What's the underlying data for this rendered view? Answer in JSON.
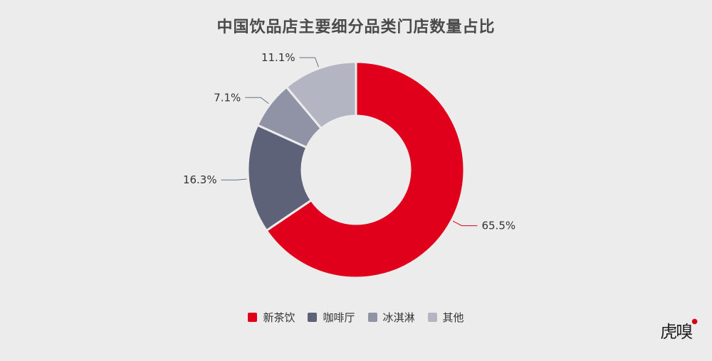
{
  "chart_data": {
    "type": "pie",
    "title": "中国饮品店主要细分品类门店数量占比",
    "series": [
      {
        "name": "新茶饮",
        "value": 65.5,
        "label": "65.5%",
        "color": "#e0001b"
      },
      {
        "name": "咖啡厅",
        "value": 16.3,
        "label": "16.3%",
        "color": "#5e6278"
      },
      {
        "name": "冰淇淋",
        "value": 7.1,
        "label": "7.1%",
        "color": "#8f93a5"
      },
      {
        "name": "其他",
        "value": 11.1,
        "label": "11.1%",
        "color": "#b3b6c2"
      }
    ],
    "legend_position": "bottom",
    "donut": true
  },
  "watermark": {
    "text": "虎嗅"
  }
}
